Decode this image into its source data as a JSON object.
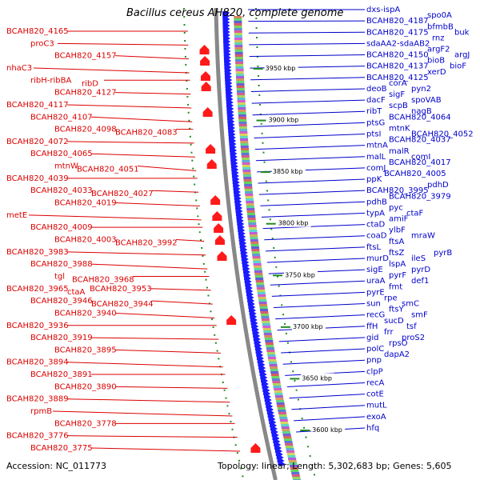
{
  "title": "Bacillus cereus AH820, complete genome",
  "accession": "Accession: NC_011773",
  "summary": "Topology: linear; Length: 5,302,683 bp; Genes: 5,605",
  "colors": {
    "forward_labels": "#0000cc",
    "reverse_labels": "#dd0000",
    "forward_genes": "#1a1aff",
    "reverse_genes": "#ff1a1a",
    "backbone": "#888888",
    "gc_ticks": "#228b22"
  },
  "ticks": [
    {
      "label": "3950 kbp",
      "value_kbp": 3950
    },
    {
      "label": "3900 kbp",
      "value_kbp": 3900
    },
    {
      "label": "3850 kbp",
      "value_kbp": 3850
    },
    {
      "label": "3800 kbp",
      "value_kbp": 3800
    },
    {
      "label": "3750 kbp",
      "value_kbp": 3750
    },
    {
      "label": "3700 kbp",
      "value_kbp": 3700
    },
    {
      "label": "3650 kbp",
      "value_kbp": 3650
    },
    {
      "label": "3600 kbp",
      "value_kbp": 3600
    }
  ],
  "forward_labels": [
    [
      "dxs-ispA"
    ],
    [
      "BCAH820_4187",
      "spo0A"
    ],
    [
      "BCAH820_4175",
      "bfmbB",
      "buk"
    ],
    [
      "sdaAA2-sdaAB2",
      "rnz"
    ],
    [
      "BCAH820_4150",
      "argF2",
      "argJ"
    ],
    [
      "BCAH820_4137",
      "bioB",
      "bioF"
    ],
    [
      "BCAH820_4125",
      "xerD"
    ],
    [
      "deoB",
      "corA",
      "pyn2"
    ],
    [
      "dacF",
      "sigF",
      "spoVAB"
    ],
    [
      "ribT",
      "scpB",
      "nagB"
    ],
    [
      "ptsG",
      "BCAH820_4064"
    ],
    [
      "ptsI",
      "mtnK",
      "BCAH820_4052"
    ],
    [
      "mtnA",
      "BCAH820_4037"
    ],
    [
      "malL",
      "malR",
      "comI"
    ],
    [
      "comJ",
      "BCAH820_4017"
    ],
    [
      "ppK",
      "BCAH820_4005"
    ],
    [
      "BCAH820_3995",
      "pdhD"
    ],
    [
      "pdhB",
      "BCAH820_3979"
    ],
    [
      "typA",
      "pyc",
      "ctaF"
    ],
    [
      "ctaD",
      "amiF"
    ],
    [
      "coaD",
      "ylbF",
      "mraW"
    ],
    [
      "ftsL",
      "ftsA"
    ],
    [
      "murD",
      "ftsZ",
      "ileS",
      "pyrB"
    ],
    [
      "sigE",
      "lspA",
      "pyrD"
    ],
    [
      "uraA",
      "pyrF",
      "def1"
    ],
    [
      "pyrE",
      "fmt"
    ],
    [
      "sun",
      "rpe",
      "smC"
    ],
    [
      "recG",
      "ftsY",
      "smF"
    ],
    [
      "ffH",
      "sucD",
      "tsf"
    ],
    [
      "gid",
      "frr",
      "proS2"
    ],
    [
      "polC",
      "rpsO"
    ],
    [
      "pnp",
      "dapA2"
    ],
    [
      "clpP"
    ],
    [
      "recA"
    ],
    [
      "cotE"
    ],
    [
      "mutL"
    ],
    [
      "exoA"
    ],
    [
      "hfq"
    ]
  ],
  "reverse_labels": [
    [
      "BCAH820_4165"
    ],
    [
      "proC3"
    ],
    [
      "BCAH820_4157"
    ],
    [
      "nhaC3"
    ],
    [
      "ribH-ribBA",
      "ribD"
    ],
    [
      "BCAH820_4127"
    ],
    [
      "BCAH820_4117"
    ],
    [
      "BCAH820_4107"
    ],
    [
      "BCAH820_4098",
      "BCAH820_4083"
    ],
    [
      "BCAH820_4072"
    ],
    [
      "BCAH820_4065"
    ],
    [
      "mtnW",
      "BCAH820_4051"
    ],
    [
      "BCAH820_4039"
    ],
    [
      "BCAH820_4033",
      "BCAH820_4027"
    ],
    [
      "BCAH820_4019"
    ],
    [
      "metE"
    ],
    [
      "BCAH820_4009"
    ],
    [
      "BCAH820_4003",
      "BCAH820_3992"
    ],
    [
      "BCAH820_3983"
    ],
    [
      "BCAH820_3988"
    ],
    [
      "tgl",
      "BCAH820_3968"
    ],
    [
      "BCAH820_3965",
      "ctaA",
      "BCAH820_3953"
    ],
    [
      "BCAH820_3946",
      "BCAH820_3944"
    ],
    [
      "BCAH820_3940"
    ],
    [
      "BCAH820_3936"
    ],
    [
      "BCAH820_3919"
    ],
    [
      "BCAH820_3895"
    ],
    [
      "BCAH820_3894"
    ],
    [
      "BCAH820_3891"
    ],
    [
      "BCAH820_3890"
    ],
    [
      "BCAH820_3889"
    ],
    [
      "rpmB"
    ],
    [
      "BCAH820_3778"
    ],
    [
      "BCAH820_3776"
    ],
    [
      "BCAH820_3775"
    ]
  ]
}
